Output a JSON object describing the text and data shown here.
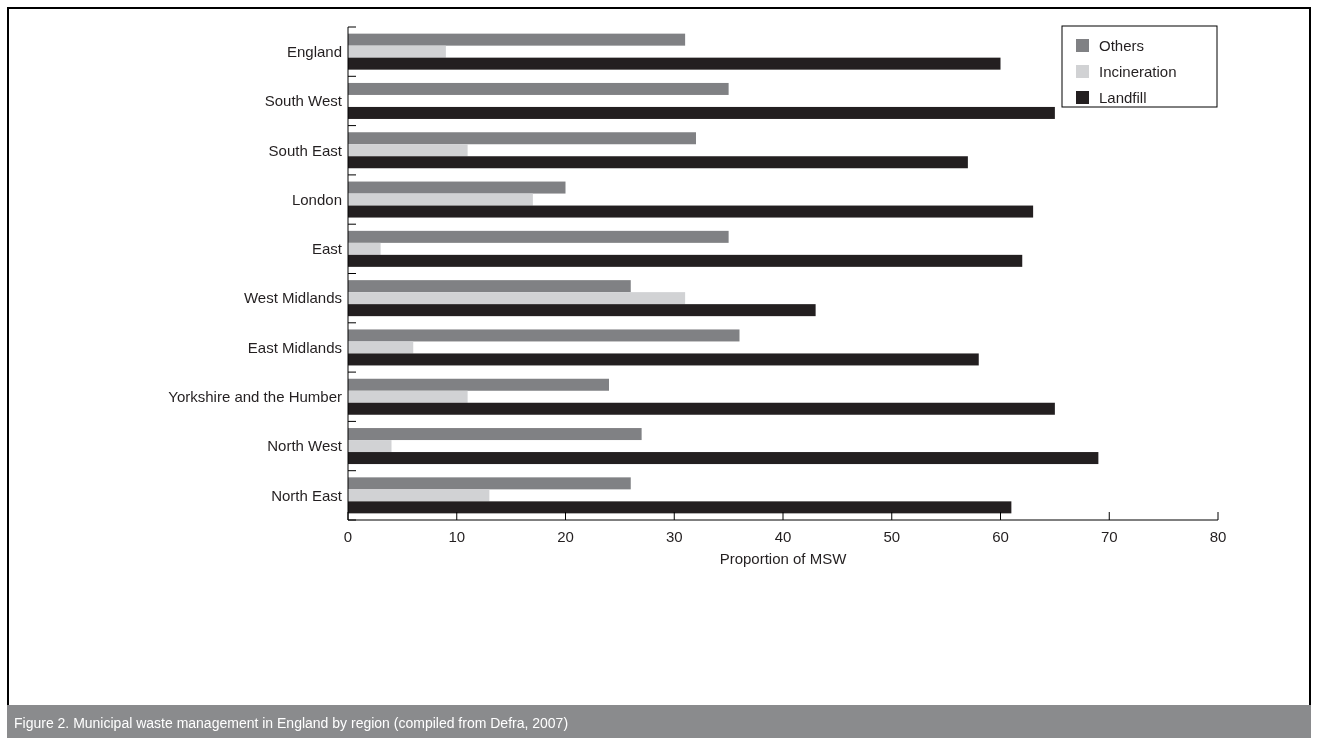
{
  "chart_data": {
    "type": "bar",
    "orientation": "horizontal",
    "xlabel": "Proportion of MSW",
    "categories": [
      "England",
      "South West",
      "South East",
      "London",
      "East",
      "West Midlands",
      "East Midlands",
      "Yorkshire and the Humber",
      "North West",
      "North East"
    ],
    "series": [
      {
        "name": "Others",
        "color": "#808184",
        "values": [
          31,
          35,
          32,
          20,
          35,
          26,
          36,
          24,
          27,
          26
        ]
      },
      {
        "name": "Incineration",
        "color": "#d1d2d4",
        "values": [
          9,
          0,
          11,
          17,
          3,
          31,
          6,
          11,
          4,
          13
        ]
      },
      {
        "name": "Landfill",
        "color": "#231f20",
        "values": [
          60,
          65,
          57,
          63,
          62,
          43,
          58,
          65,
          69,
          61
        ]
      }
    ],
    "xlim": [
      0,
      80
    ],
    "xticks": [
      0,
      10,
      20,
      30,
      40,
      50,
      60,
      70,
      80
    ],
    "legend": "top right",
    "annotations": [
      "Figure 2. Municipal waste management in England by region (compiled from Defra, 2007)"
    ]
  }
}
